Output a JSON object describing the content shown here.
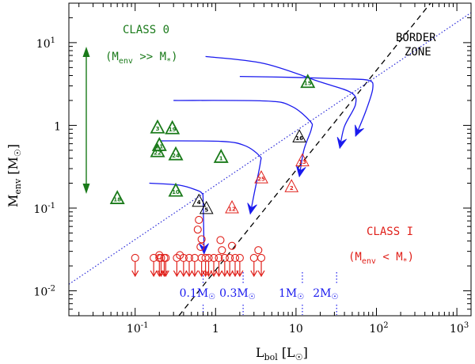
{
  "chart_data": {
    "type": "scatter",
    "xscale": "log",
    "yscale": "log",
    "xlim": [
      0.015,
      1500
    ],
    "ylim": [
      0.005,
      30
    ],
    "xlabel": {
      "main": "L",
      "sub": "bol",
      "unit": "[L",
      "unit_end": "]"
    },
    "ylabel": {
      "main": "M",
      "sub": "env",
      "unit": "[M",
      "unit_end": "]"
    },
    "xticks": [
      {
        "v": 0.1,
        "base": "10",
        "exp": "-1"
      },
      {
        "v": 1,
        "base": "1",
        "exp": ""
      },
      {
        "v": 10,
        "base": "10",
        "exp": ""
      },
      {
        "v": 100,
        "base": "10",
        "exp": "2"
      },
      {
        "v": 1000,
        "base": "10",
        "exp": "3"
      }
    ],
    "yticks": [
      {
        "v": 0.01,
        "base": "10",
        "exp": "-2"
      },
      {
        "v": 0.1,
        "base": "10",
        "exp": "-1"
      },
      {
        "v": 1,
        "base": "1",
        "exp": ""
      },
      {
        "v": 10,
        "base": "10",
        "exp": "1"
      }
    ],
    "class0_label": "CLASS 0",
    "class0_relation": {
      "open": "(M",
      "sub1": "env",
      "mid": " >> M",
      "sub2": "*",
      "close": ")"
    },
    "class1_label": "CLASS I",
    "class1_relation": {
      "open": "(M",
      "sub1": "env",
      "mid": " < M",
      "sub2": "*",
      "close": ")"
    },
    "border_label_1": "BORDER",
    "border_label_2": "ZONE",
    "mass_labels": [
      {
        "text": "0.1M",
        "x": 0.7
      },
      {
        "text": "0.3M",
        "x": 2.2
      },
      {
        "text": "1M",
        "x": 12
      },
      {
        "text": "2M",
        "x": 32
      }
    ],
    "class0_triangles": [
      {
        "x": 0.06,
        "y": 0.13,
        "label": "18"
      },
      {
        "x": 0.19,
        "y": 0.93,
        "label": "3"
      },
      {
        "x": 0.29,
        "y": 0.91,
        "label": "19"
      },
      {
        "x": 0.2,
        "y": 0.57,
        "label": "21"
      },
      {
        "x": 0.19,
        "y": 0.48,
        "label": "22"
      },
      {
        "x": 0.32,
        "y": 0.44,
        "label": "24"
      },
      {
        "x": 1.17,
        "y": 0.41,
        "label": "1"
      },
      {
        "x": 0.32,
        "y": 0.16,
        "label": "10"
      },
      {
        "x": 14,
        "y": 3.3,
        "label": "15"
      }
    ],
    "border_triangles": [
      {
        "x": 0.62,
        "y": 0.12,
        "label": "4"
      },
      {
        "x": 0.77,
        "y": 0.098,
        "label": "5"
      },
      {
        "x": 11,
        "y": 0.72,
        "label": "16"
      }
    ],
    "class1_triangles": [
      {
        "x": 1.6,
        "y": 0.1,
        "label": "12"
      },
      {
        "x": 3.7,
        "y": 0.23,
        "label": "25"
      },
      {
        "x": 8.8,
        "y": 0.18,
        "label": "2"
      },
      {
        "x": 12,
        "y": 0.37,
        "label": "13"
      }
    ],
    "class1_circles": [
      {
        "x": 0.62,
        "y": 0.072
      },
      {
        "x": 0.6,
        "y": 0.055
      },
      {
        "x": 0.67,
        "y": 0.042
      },
      {
        "x": 1.15,
        "y": 0.041
      },
      {
        "x": 0.65,
        "y": 0.034
      },
      {
        "x": 1.6,
        "y": 0.035
      },
      {
        "x": 1.2,
        "y": 0.031
      },
      {
        "x": 3.4,
        "y": 0.031
      },
      {
        "x": 0.2,
        "y": 0.027
      },
      {
        "x": 0.36,
        "y": 0.027
      }
    ],
    "upper_limits_y": 0.025,
    "upper_limits_x": [
      0.1,
      0.17,
      0.2,
      0.21,
      0.23,
      0.24,
      0.33,
      0.4,
      0.47,
      0.55,
      0.67,
      0.75,
      0.82,
      0.95,
      1.1,
      1.3,
      1.5,
      1.75,
      2.0,
      3.0,
      3.7
    ],
    "tracks": [
      {
        "points": [
          [
            0.15,
            0.2
          ],
          [
            0.35,
            0.19
          ],
          [
            0.58,
            0.165
          ],
          [
            0.68,
            0.15
          ],
          [
            0.7,
            0.125
          ],
          [
            0.72,
            0.028
          ]
        ]
      },
      {
        "points": [
          [
            0.21,
            0.65
          ],
          [
            1.2,
            0.64
          ],
          [
            2.3,
            0.57
          ],
          [
            3.5,
            0.43
          ],
          [
            3.6,
            0.35
          ],
          [
            3.0,
            0.145
          ],
          [
            2.7,
            0.085
          ]
        ]
      },
      {
        "points": [
          [
            0.3,
            2.0
          ],
          [
            4.2,
            1.97
          ],
          [
            8.8,
            1.7
          ],
          [
            15,
            1.12
          ],
          [
            15.5,
            0.9
          ],
          [
            12.5,
            0.5
          ],
          [
            11,
            0.24
          ]
        ]
      },
      {
        "points": [
          [
            0.75,
            6.8
          ],
          [
            4,
            5.6
          ],
          [
            20,
            3.35
          ],
          [
            48,
            2.5
          ],
          [
            55,
            1.8
          ],
          [
            40,
            0.97
          ],
          [
            35,
            0.53
          ]
        ]
      },
      {
        "points": [
          [
            2.0,
            3.9
          ],
          [
            9.5,
            3.8
          ],
          [
            38,
            3.65
          ],
          [
            80,
            3.5
          ],
          [
            90,
            2.8
          ],
          [
            74,
            1.5
          ],
          [
            55,
            0.74
          ]
        ]
      }
    ],
    "dashed_line": [
      [
        0.35,
        0.005
      ],
      [
        470,
        30
      ]
    ],
    "dotted_line": [
      [
        0.015,
        0.012
      ],
      [
        1500,
        23
      ]
    ],
    "colors": {
      "class0": "#1a7a1a",
      "class1": "#e0201a",
      "border": "#000000",
      "track": "#1a1aee",
      "dotted": "#2a2ad8"
    }
  }
}
